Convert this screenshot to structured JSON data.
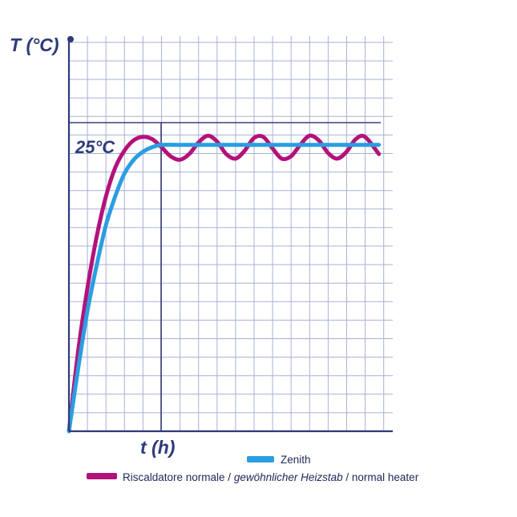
{
  "chart_data": {
    "type": "line",
    "y_axis_label": "T (°C)",
    "x_axis_label": "t (h)",
    "reference_label": "25°C",
    "reference_value": 25,
    "ylim": [
      0,
      34.5
    ],
    "xlim": [
      0,
      35
    ],
    "grid": true,
    "legend_position": "bottom",
    "series": [
      {
        "name": "Zenith",
        "color": "#2a9ee0",
        "x": [
          0,
          1,
          2,
          3,
          4,
          5,
          6,
          7,
          8,
          9,
          10,
          12,
          15,
          20,
          25,
          30,
          33.5
        ],
        "values": [
          0,
          5.5,
          10.5,
          14.5,
          18,
          20.5,
          22.5,
          23.7,
          24.4,
          24.8,
          25,
          25,
          25,
          25,
          25,
          25,
          25
        ]
      },
      {
        "name_parts": [
          "Riscaldatore normale / ",
          "gewöhnlicher Heizstab",
          " / normal heater"
        ],
        "color": "#b3127a",
        "x": [
          0,
          1,
          2,
          3,
          4,
          5,
          6,
          7,
          8,
          9,
          10,
          11,
          12,
          13,
          14,
          15,
          16,
          17,
          18,
          19,
          20,
          21,
          22,
          23,
          24,
          25,
          26,
          27,
          28,
          29,
          30,
          31,
          32,
          33.5
        ],
        "values": [
          0,
          7,
          12.5,
          17,
          20.5,
          23,
          24.5,
          25.4,
          25.7,
          25.5,
          24.8,
          24.0,
          23.7,
          24.2,
          25.2,
          25.8,
          25.3,
          24.2,
          23.8,
          24.5,
          25.6,
          25.7,
          24.7,
          23.8,
          24.0,
          25.0,
          25.8,
          25.4,
          24.3,
          23.8,
          24.4,
          25.5,
          25.7,
          24.2
        ]
      }
    ]
  }
}
